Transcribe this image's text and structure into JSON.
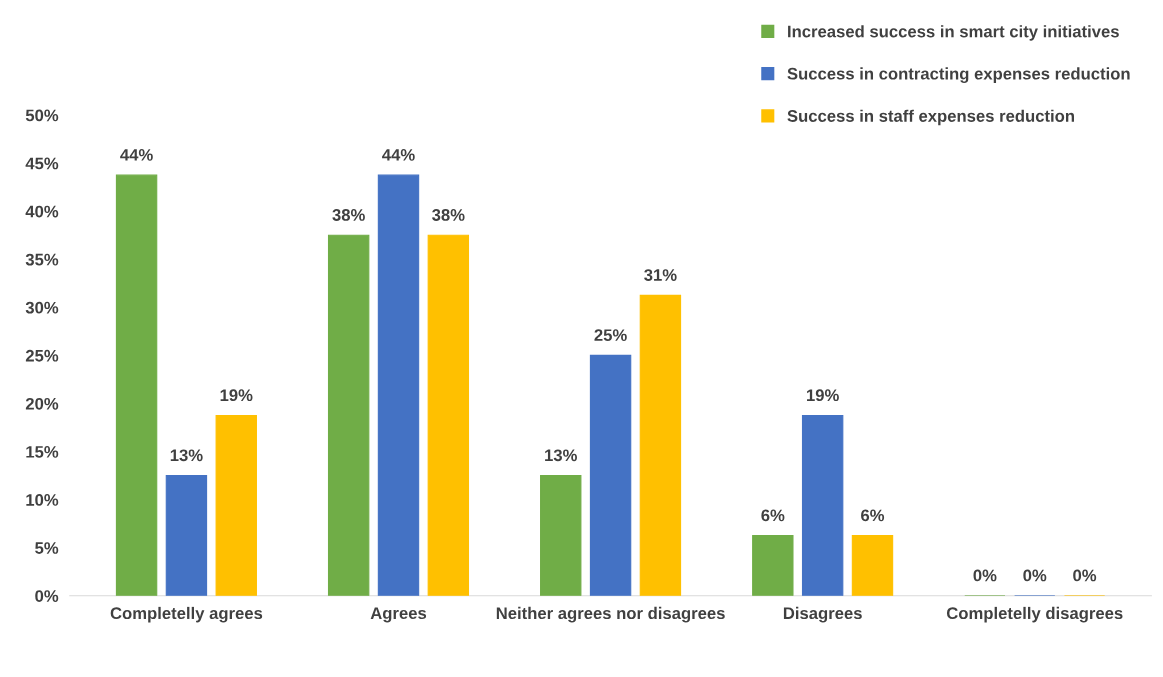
{
  "chart_data": {
    "type": "bar",
    "categories": [
      "Completelly agrees",
      "Agrees",
      "Neither agrees nor disagrees",
      "Disagrees",
      "Completelly disagrees"
    ],
    "series": [
      {
        "name": "Increased success in smart city initiatives",
        "color": "#70ad47",
        "values": [
          43.75,
          37.5,
          12.5,
          6.25,
          0
        ],
        "value_labels": [
          "44%",
          "38%",
          "13%",
          "6%",
          "0%"
        ]
      },
      {
        "name": "Success in contracting expenses reduction",
        "color": "#4472c4",
        "values": [
          12.5,
          43.75,
          25,
          18.75,
          0
        ],
        "value_labels": [
          "13%",
          "44%",
          "25%",
          "19%",
          "0%"
        ]
      },
      {
        "name": "Success in staff expenses reduction",
        "color": "#ffc000",
        "values": [
          18.75,
          37.5,
          31.25,
          6.25,
          0
        ],
        "value_labels": [
          "19%",
          "38%",
          "31%",
          "6%",
          "0%"
        ]
      }
    ],
    "ylim": [
      0,
      50
    ],
    "yticks": [
      {
        "value": 0,
        "label": "0%"
      },
      {
        "value": 5,
        "label": "5%"
      },
      {
        "value": 10,
        "label": "10%"
      },
      {
        "value": 15,
        "label": "15%"
      },
      {
        "value": 20,
        "label": "20%"
      },
      {
        "value": 25,
        "label": "25%"
      },
      {
        "value": 30,
        "label": "30%"
      },
      {
        "value": 35,
        "label": "35%"
      },
      {
        "value": 40,
        "label": "40%"
      },
      {
        "value": 45,
        "label": "45%"
      },
      {
        "value": 50,
        "label": "50%"
      }
    ],
    "grid": false,
    "legend": "top right"
  }
}
